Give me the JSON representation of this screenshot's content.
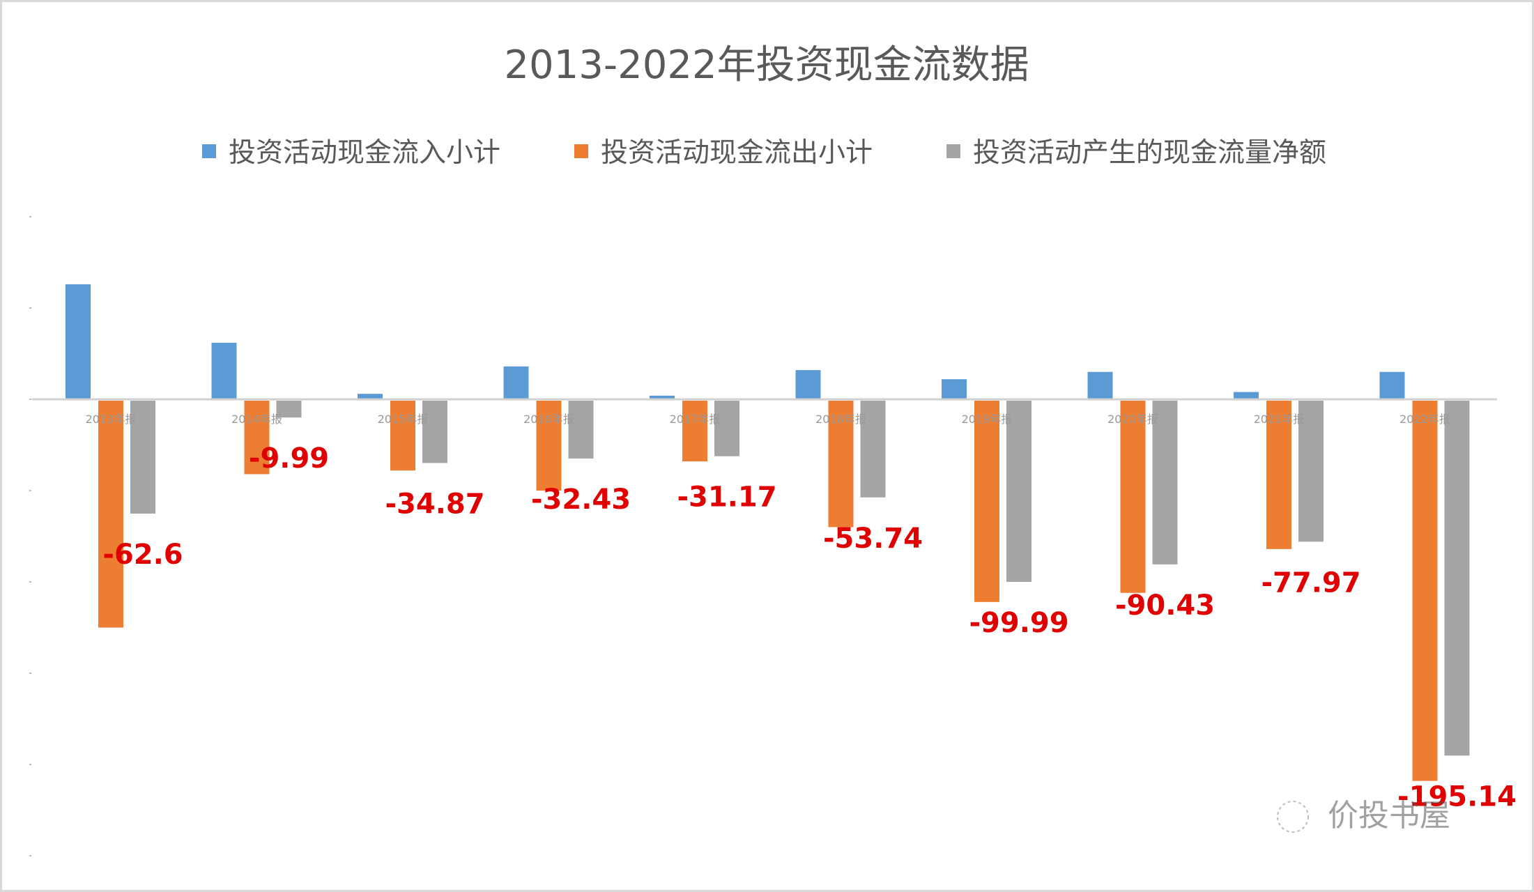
{
  "chart_data": {
    "type": "bar",
    "title": "2013-2022年投资现金流数据",
    "categories": [
      "2013年报",
      "2014年报",
      "2015年报",
      "2016年报",
      "2017年报",
      "2018年报",
      "2019年报",
      "2020年报",
      "2021年报",
      "2022年报"
    ],
    "series": [
      {
        "name": "投资活动现金流入小计",
        "color": "#5b9bd5",
        "values": [
          63,
          31,
          3,
          18,
          2,
          16,
          11,
          15,
          4,
          15
        ]
      },
      {
        "name": "投资活动现金流出小计",
        "color": "#ed7d31",
        "values": [
          -125,
          -41,
          -39,
          -50,
          -34,
          -70,
          -111,
          -106,
          -82,
          -209
        ]
      },
      {
        "name": "投资活动产生的现金流量净额",
        "color": "#a5a5a5",
        "values": [
          -62.6,
          -9.99,
          -34.87,
          -32.43,
          -31.17,
          -53.74,
          -99.99,
          -90.43,
          -77.97,
          -195.14
        ]
      }
    ],
    "data_labels": {
      "series": "投资活动产生的现金流量净额",
      "labels": [
        "-62.6",
        "-9.99",
        "-34.87",
        "-32.43",
        "-31.17",
        "-53.74",
        "-99.99",
        "-90.43",
        "-77.97",
        "-195.14"
      ],
      "color": "#e00000"
    },
    "ylim": [
      -250,
      100
    ],
    "ytick_step": 50,
    "ytick_labels_visible": false,
    "grid": false,
    "legend": "top",
    "xlabel": "",
    "ylabel": ""
  },
  "watermark": "价投书屋"
}
